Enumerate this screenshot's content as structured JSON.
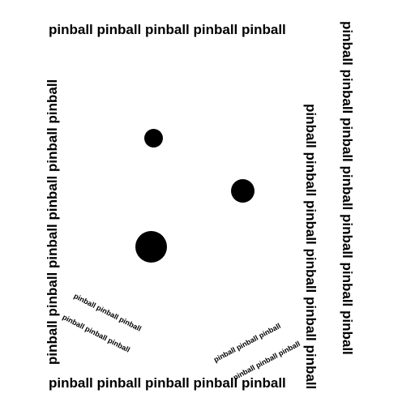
{
  "board": {
    "word": "pinball",
    "walls": {
      "top": "pinball pinball pinball pinball pinball",
      "bottom": "pinball pinball pinball pinball pinball",
      "left": "pinball pinball pinball pinball pinball pinball",
      "right": "pinball pinball pinball pinball pinball pinball pinball",
      "right_inner": "pinball pinball pinball pinball pinball pinball"
    },
    "flippers": {
      "left_1": "pinball pinball pinball",
      "left_2": "pinball pinball pinball",
      "right_1": "pinball pinball pinball",
      "right_2": "pinball pinball pinball"
    },
    "bumpers": [
      "small",
      "medium",
      "large"
    ]
  },
  "colors": {
    "background": "#ffffff",
    "foreground": "#000000"
  }
}
